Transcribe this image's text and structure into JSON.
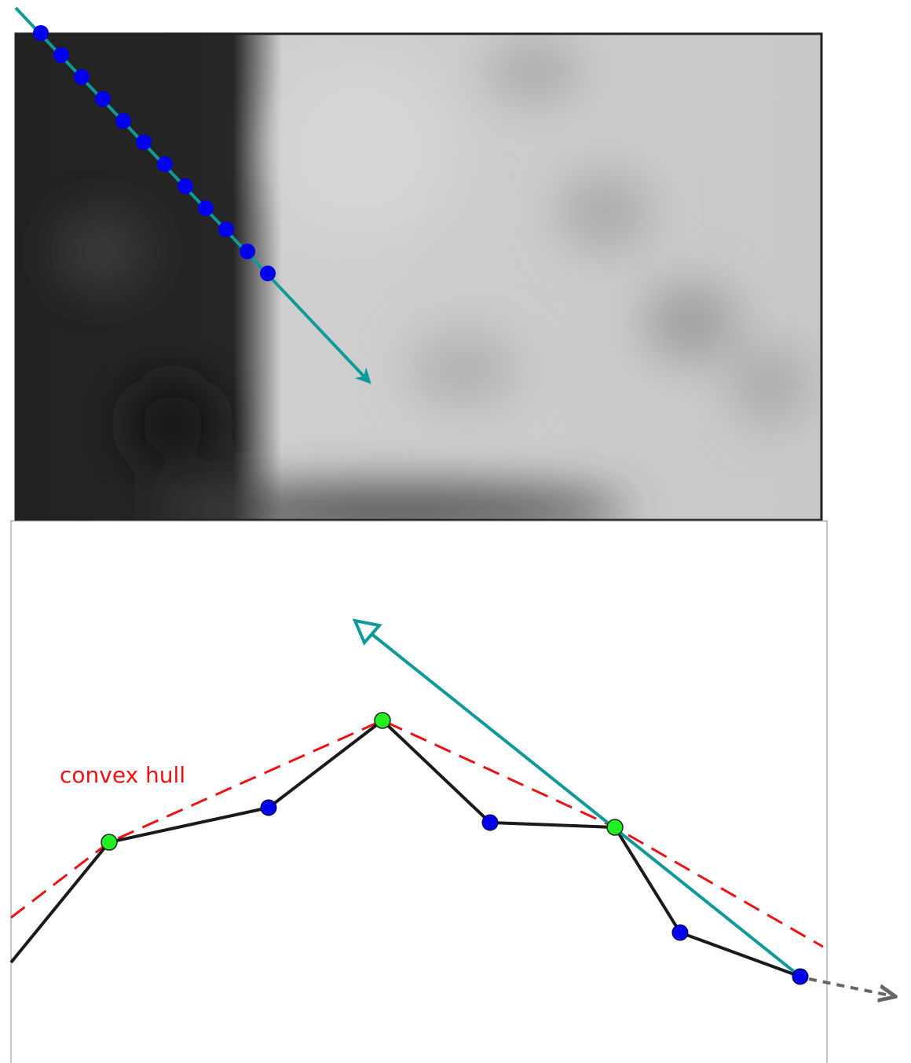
{
  "label": "convex hull"
}
